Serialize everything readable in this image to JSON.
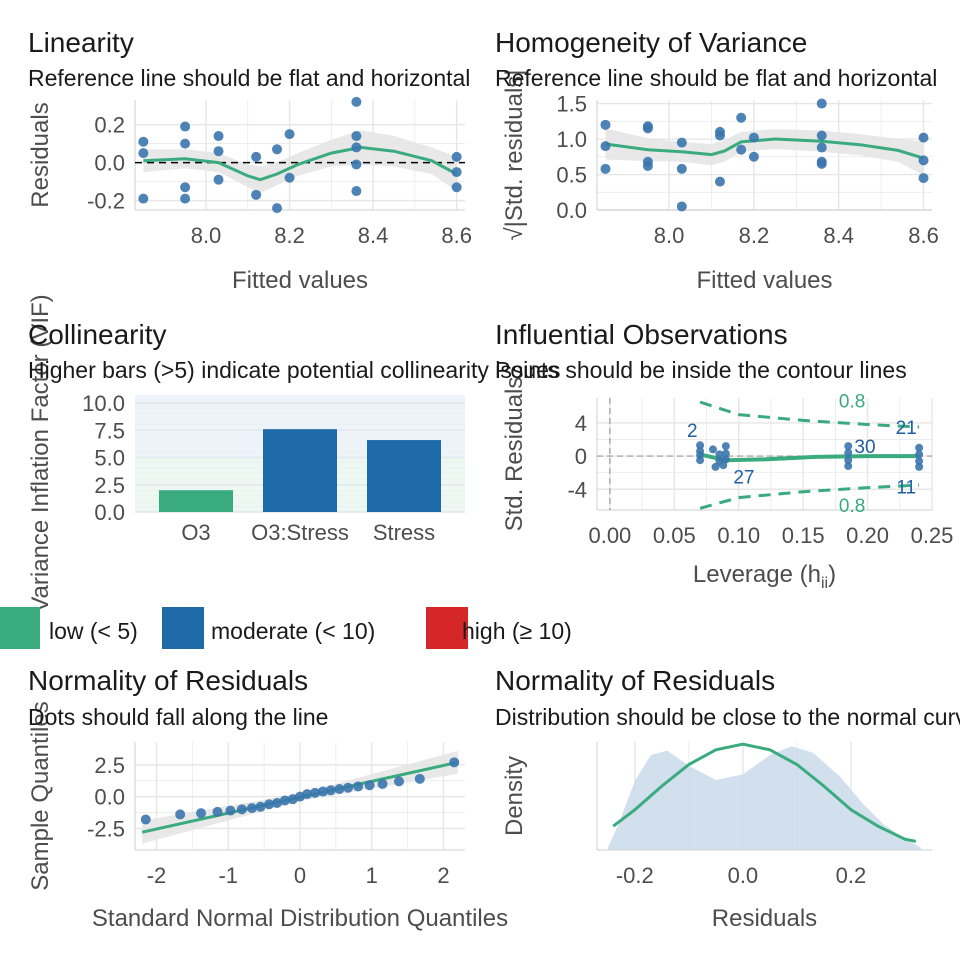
{
  "colors": {
    "point": "#3a75ad",
    "smooth": "#3aaa7f",
    "band": "#e4e4e4",
    "grid": "#e6e6e6",
    "axis_text": "#4d4d4d",
    "text": "#1a1a1a",
    "vif_low": "#3aaa7f",
    "vif_moderate": "#1f6aa9",
    "vif_high": "#d62728",
    "density_fill": "#c9dae9",
    "label_blue": "#1f5fa3"
  },
  "chart_data": [
    {
      "id": "linearity",
      "type": "scatter",
      "title": "Linearity",
      "subtitle": "Reference line should be flat and horizontal",
      "xlabel": "Fitted values",
      "ylabel": "Residuals",
      "xlim": [
        7.83,
        8.62
      ],
      "ylim": [
        -0.25,
        0.33
      ],
      "xticks": [
        8.0,
        8.2,
        8.4,
        8.6
      ],
      "xticklabels": [
        "8.0",
        "8.2",
        "8.4",
        "8.6"
      ],
      "yticks": [
        -0.2,
        0.0,
        0.2
      ],
      "yticklabels": [
        "-0.2",
        "0.0",
        "0.2"
      ],
      "reference_y": 0,
      "points": [
        [
          7.85,
          0.11
        ],
        [
          7.85,
          0.05
        ],
        [
          7.85,
          -0.19
        ],
        [
          7.95,
          0.19
        ],
        [
          7.95,
          0.1
        ],
        [
          7.95,
          -0.13
        ],
        [
          7.95,
          -0.19
        ],
        [
          8.03,
          0.14
        ],
        [
          8.03,
          0.06
        ],
        [
          8.03,
          -0.09
        ],
        [
          8.12,
          0.03
        ],
        [
          8.12,
          -0.17
        ],
        [
          8.17,
          0.07
        ],
        [
          8.17,
          -0.24
        ],
        [
          8.2,
          0.15
        ],
        [
          8.2,
          -0.08
        ],
        [
          8.36,
          0.32
        ],
        [
          8.36,
          0.14
        ],
        [
          8.36,
          0.08
        ],
        [
          8.36,
          -0.01
        ],
        [
          8.36,
          -0.15
        ],
        [
          8.6,
          0.03
        ],
        [
          8.6,
          -0.05
        ],
        [
          8.6,
          -0.13
        ]
      ],
      "smooth": [
        [
          7.85,
          0.01
        ],
        [
          7.95,
          0.02
        ],
        [
          8.03,
          0.0
        ],
        [
          8.1,
          -0.07
        ],
        [
          8.13,
          -0.09
        ],
        [
          8.17,
          -0.06
        ],
        [
          8.22,
          -0.01
        ],
        [
          8.3,
          0.05
        ],
        [
          8.37,
          0.08
        ],
        [
          8.45,
          0.06
        ],
        [
          8.54,
          0.01
        ],
        [
          8.6,
          -0.06
        ]
      ],
      "band_width": [
        0.06,
        0.05,
        0.05,
        0.06,
        0.07,
        0.06,
        0.06,
        0.07,
        0.09,
        0.08,
        0.07,
        0.09
      ]
    },
    {
      "id": "homogeneity",
      "type": "scatter",
      "title": "Homogeneity of Variance",
      "subtitle": "Reference line should be flat and horizontal",
      "xlabel": "Fitted values",
      "ylabel": "√|Std. residuals|",
      "xlim": [
        7.83,
        8.62
      ],
      "ylim": [
        0.0,
        1.55
      ],
      "xticks": [
        8.0,
        8.2,
        8.4,
        8.6
      ],
      "xticklabels": [
        "8.0",
        "8.2",
        "8.4",
        "8.6"
      ],
      "yticks": [
        0.0,
        0.5,
        1.0,
        1.5
      ],
      "yticklabels": [
        "0.0",
        "0.5",
        "1.0",
        "1.5"
      ],
      "points": [
        [
          7.85,
          1.2
        ],
        [
          7.85,
          0.9
        ],
        [
          7.85,
          0.58
        ],
        [
          7.95,
          1.18
        ],
        [
          7.95,
          1.15
        ],
        [
          7.95,
          0.68
        ],
        [
          7.95,
          0.62
        ],
        [
          8.03,
          0.95
        ],
        [
          8.03,
          0.58
        ],
        [
          8.03,
          0.05
        ],
        [
          8.12,
          1.1
        ],
        [
          8.12,
          1.05
        ],
        [
          8.12,
          0.4
        ],
        [
          8.17,
          1.3
        ],
        [
          8.17,
          0.85
        ],
        [
          8.2,
          1.02
        ],
        [
          8.2,
          0.75
        ],
        [
          8.36,
          1.5
        ],
        [
          8.36,
          1.05
        ],
        [
          8.36,
          0.88
        ],
        [
          8.36,
          0.68
        ],
        [
          8.36,
          0.65
        ],
        [
          8.6,
          1.02
        ],
        [
          8.6,
          0.7
        ],
        [
          8.6,
          0.45
        ]
      ],
      "smooth": [
        [
          7.85,
          0.93
        ],
        [
          7.95,
          0.85
        ],
        [
          8.03,
          0.82
        ],
        [
          8.1,
          0.78
        ],
        [
          8.13,
          0.83
        ],
        [
          8.17,
          0.96
        ],
        [
          8.25,
          1.0
        ],
        [
          8.36,
          0.97
        ],
        [
          8.45,
          0.92
        ],
        [
          8.54,
          0.84
        ],
        [
          8.6,
          0.73
        ]
      ],
      "band_width": [
        0.22,
        0.16,
        0.14,
        0.15,
        0.15,
        0.14,
        0.14,
        0.15,
        0.15,
        0.16,
        0.24
      ]
    },
    {
      "id": "collinearity",
      "type": "bar",
      "title": "Collinearity",
      "subtitle": "Higher bars (>5) indicate potential collinearity issues",
      "xlabel": "",
      "ylabel": "Variance Inflation Factor (VIF)",
      "categories": [
        "O3",
        "O3:Stress",
        "Stress"
      ],
      "values": [
        2.0,
        7.6,
        6.6
      ],
      "bar_colors": [
        "vif_low",
        "vif_moderate",
        "vif_moderate"
      ],
      "ylim": [
        0,
        10
      ],
      "yticks": [
        0,
        2.5,
        5,
        7.5,
        10
      ],
      "yticklabels": [
        "0.0",
        "2.5",
        "5.0",
        "7.5",
        "10.0"
      ],
      "legend": [
        "low (< 5)",
        "moderate (< 10)",
        "high (≥ 10)"
      ],
      "legend_placement": "bottom"
    },
    {
      "id": "influential",
      "type": "scatter",
      "title": "Influential Observations",
      "subtitle": "Points should be inside the contour lines",
      "xlabel": "Leverage (h",
      "xlabel_sub": "ii",
      "xlabel_end": ")",
      "ylabel": "Std. Residuals",
      "xlim": [
        -0.01,
        0.25
      ],
      "ylim": [
        -6.5,
        7
      ],
      "xticks": [
        0.0,
        0.05,
        0.1,
        0.15,
        0.2,
        0.25
      ],
      "xticklabels": [
        "0.00",
        "0.05",
        "0.10",
        "0.15",
        "0.20",
        "0.25"
      ],
      "yticks": [
        -4,
        0,
        4
      ],
      "yticklabels": [
        "-4",
        "0",
        "4"
      ],
      "points": [
        [
          0.07,
          1.3
        ],
        [
          0.07,
          0.6
        ],
        [
          0.07,
          0.1
        ],
        [
          0.07,
          -0.5
        ],
        [
          0.08,
          0.8
        ],
        [
          0.082,
          -1.3
        ],
        [
          0.085,
          0.2
        ],
        [
          0.085,
          -0.6
        ],
        [
          0.088,
          -1.1
        ],
        [
          0.09,
          1.2
        ],
        [
          0.09,
          0.3
        ],
        [
          0.09,
          -0.4
        ],
        [
          0.185,
          1.2
        ],
        [
          0.185,
          0.4
        ],
        [
          0.185,
          -0.5
        ],
        [
          0.185,
          -1.2
        ],
        [
          0.24,
          1.0
        ],
        [
          0.24,
          0.2
        ],
        [
          0.24,
          -0.6
        ],
        [
          0.24,
          -1.3
        ]
      ],
      "smooth": [
        [
          0.07,
          0.2
        ],
        [
          0.09,
          -0.5
        ],
        [
          0.12,
          -0.4
        ],
        [
          0.16,
          -0.1
        ],
        [
          0.2,
          0.0
        ],
        [
          0.24,
          0.0
        ]
      ],
      "contour_upper": [
        [
          0.07,
          6.5
        ],
        [
          0.1,
          5.0
        ],
        [
          0.15,
          4.3
        ],
        [
          0.2,
          3.8
        ],
        [
          0.24,
          3.5
        ]
      ],
      "contour_lower": [
        [
          0.07,
          -6.3
        ],
        [
          0.1,
          -5.0
        ],
        [
          0.15,
          -4.3
        ],
        [
          0.2,
          -3.8
        ],
        [
          0.24,
          -3.5
        ]
      ],
      "contour_labels": [
        {
          "text": "0.8",
          "x": 0.188,
          "y": 6.6
        },
        {
          "text": "0.8",
          "x": 0.188,
          "y": -6.0
        }
      ],
      "point_labels": [
        {
          "text": "2",
          "x": 0.064,
          "y": 3.0
        },
        {
          "text": "27",
          "x": 0.104,
          "y": -2.6
        },
        {
          "text": "30",
          "x": 0.198,
          "y": 1.1
        },
        {
          "text": "21",
          "x": 0.23,
          "y": 3.4
        },
        {
          "text": "11",
          "x": 0.23,
          "y": -3.8
        }
      ]
    },
    {
      "id": "qq",
      "type": "scatter",
      "title": "Normality of Residuals",
      "subtitle": "Dots should fall along the line",
      "xlabel": "Standard Normal Distribution Quantiles",
      "ylabel": "Sample Quantiles",
      "xlim": [
        -2.3,
        2.3
      ],
      "ylim": [
        -4.2,
        4.3
      ],
      "xticks": [
        -2,
        -1,
        0,
        1,
        2
      ],
      "xticklabels": [
        "-2",
        "-1",
        "0",
        "1",
        "2"
      ],
      "yticks": [
        -2.5,
        0.0,
        2.5
      ],
      "yticklabels": [
        "-2.5",
        "0.0",
        "2.5"
      ],
      "points": [
        [
          -2.15,
          -1.8
        ],
        [
          -1.67,
          -1.4
        ],
        [
          -1.38,
          -1.3
        ],
        [
          -1.15,
          -1.2
        ],
        [
          -0.97,
          -1.1
        ],
        [
          -0.81,
          -1.0
        ],
        [
          -0.67,
          -0.9
        ],
        [
          -0.55,
          -0.8
        ],
        [
          -0.43,
          -0.6
        ],
        [
          -0.32,
          -0.5
        ],
        [
          -0.21,
          -0.3
        ],
        [
          -0.1,
          -0.2
        ],
        [
          0.0,
          0.0
        ],
        [
          0.1,
          0.2
        ],
        [
          0.21,
          0.3
        ],
        [
          0.32,
          0.4
        ],
        [
          0.43,
          0.5
        ],
        [
          0.55,
          0.6
        ],
        [
          0.67,
          0.7
        ],
        [
          0.81,
          0.8
        ],
        [
          0.97,
          0.9
        ],
        [
          1.15,
          1.0
        ],
        [
          1.38,
          1.2
        ],
        [
          1.67,
          1.4
        ],
        [
          2.15,
          2.7
        ]
      ],
      "line": [
        [
          -2.2,
          -2.8
        ],
        [
          2.2,
          2.7
        ]
      ],
      "band_width_ends": [
        0.9,
        0.3,
        0.9
      ]
    },
    {
      "id": "density",
      "type": "area",
      "title": "Normality of Residuals",
      "subtitle": "Distribution should be close to the normal curve",
      "xlabel": "Residuals",
      "ylabel": "Density",
      "xlim": [
        -0.27,
        0.35
      ],
      "ylim": [
        0,
        2.5
      ],
      "xticks": [
        -0.2,
        0.0,
        0.2
      ],
      "xticklabels": [
        "-0.2",
        "0.0",
        "0.2"
      ],
      "empirical": [
        [
          -0.25,
          0.05
        ],
        [
          -0.23,
          0.6
        ],
        [
          -0.2,
          1.6
        ],
        [
          -0.17,
          2.2
        ],
        [
          -0.14,
          2.3
        ],
        [
          -0.1,
          1.95
        ],
        [
          -0.05,
          1.62
        ],
        [
          0.0,
          1.75
        ],
        [
          0.05,
          2.2
        ],
        [
          0.09,
          2.4
        ],
        [
          0.13,
          2.25
        ],
        [
          0.18,
          1.7
        ],
        [
          0.22,
          1.1
        ],
        [
          0.26,
          0.6
        ],
        [
          0.3,
          0.25
        ],
        [
          0.33,
          0.05
        ]
      ],
      "normal_curve": [
        [
          -0.24,
          0.55
        ],
        [
          -0.2,
          0.93
        ],
        [
          -0.15,
          1.48
        ],
        [
          -0.1,
          1.98
        ],
        [
          -0.05,
          2.32
        ],
        [
          0.0,
          2.45
        ],
        [
          0.05,
          2.32
        ],
        [
          0.1,
          1.98
        ],
        [
          0.15,
          1.48
        ],
        [
          0.2,
          0.93
        ],
        [
          0.25,
          0.55
        ],
        [
          0.3,
          0.25
        ],
        [
          0.32,
          0.2
        ]
      ]
    }
  ]
}
